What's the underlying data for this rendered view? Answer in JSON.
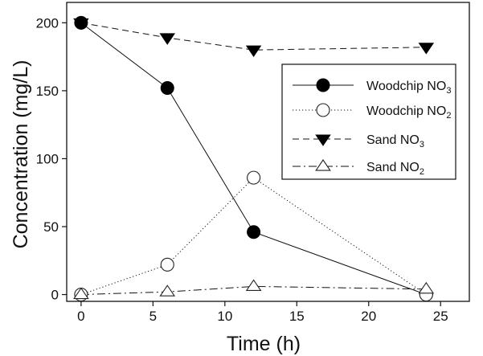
{
  "chart_data": {
    "type": "line",
    "xlabel": "Time (h)",
    "ylabel": "Concentration (mg/L)",
    "xlim": [
      -1,
      27
    ],
    "ylim": [
      -5,
      215
    ],
    "xticks": [
      0,
      5,
      10,
      15,
      20,
      25
    ],
    "yticks": [
      0,
      50,
      100,
      150,
      200
    ],
    "grid": false,
    "legend_position": "top-right",
    "series": [
      {
        "name": "Woodchip NO3",
        "label_main": "Woodchip NO",
        "label_sub": "3",
        "marker": "circle-filled",
        "line": "solid",
        "x": [
          0,
          6,
          12,
          24
        ],
        "y": [
          200,
          152,
          46,
          0
        ]
      },
      {
        "name": "Woodchip NO2",
        "label_main": "Woodchip NO",
        "label_sub": "2",
        "marker": "circle-open",
        "line": "dotted",
        "x": [
          0,
          6,
          12,
          24
        ],
        "y": [
          0,
          22,
          86,
          0
        ]
      },
      {
        "name": "Sand NO3",
        "label_main": "Sand NO",
        "label_sub": "3",
        "marker": "triangle-down-filled",
        "line": "dashed",
        "x": [
          0,
          6,
          12,
          24
        ],
        "y": [
          200,
          189,
          180,
          182
        ]
      },
      {
        "name": "Sand NO2",
        "label_main": "Sand NO",
        "label_sub": "2",
        "marker": "triangle-up-open",
        "line": "dash-dot",
        "x": [
          0,
          6,
          12,
          24
        ],
        "y": [
          0,
          2,
          6,
          4
        ]
      }
    ]
  }
}
